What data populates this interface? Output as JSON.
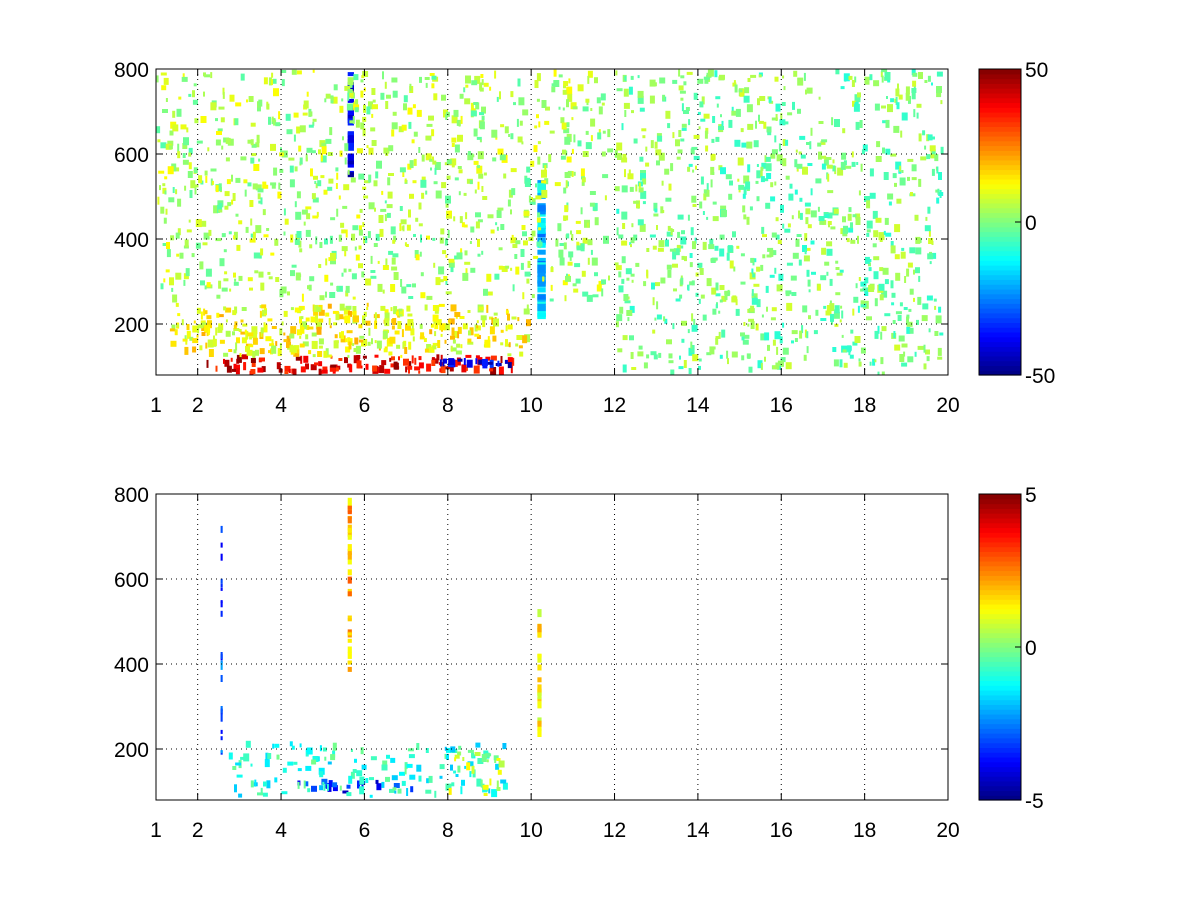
{
  "chart_data": [
    {
      "type": "heatmap",
      "title": "",
      "xlabel": "",
      "ylabel": "",
      "xlim": [
        1,
        20
      ],
      "ylim": [
        80,
        800
      ],
      "xticks": [
        "1",
        "2",
        "4",
        "6",
        "8",
        "10",
        "12",
        "14",
        "16",
        "18",
        "20"
      ],
      "xtick_values": [
        1,
        2,
        4,
        6,
        8,
        10,
        12,
        14,
        16,
        18,
        20
      ],
      "yticks": [
        "200",
        "400",
        "600",
        "800"
      ],
      "ytick_values": [
        200,
        400,
        600,
        800
      ],
      "grid": true,
      "colormap": "jet",
      "clim": [
        -50,
        50
      ],
      "colorbar_ticks": [
        "-50",
        "0",
        "50"
      ],
      "colorbar_values": [
        -50,
        0,
        50
      ],
      "features": [
        {
          "x": [
            2.2,
            9.6
          ],
          "y": [
            80,
            130
          ],
          "value": 40
        },
        {
          "x": [
            7.6,
            9.6
          ],
          "y": [
            95,
            120
          ],
          "value": -40
        },
        {
          "x": [
            1.3,
            10.0
          ],
          "y": [
            120,
            250
          ],
          "value": 12
        },
        {
          "x": [
            5.6,
            5.75
          ],
          "y": [
            540,
            800
          ],
          "value": -40
        },
        {
          "x": [
            10.15,
            10.35
          ],
          "y": [
            200,
            550
          ],
          "value": -18
        },
        {
          "x": [
            1.0,
            12.0
          ],
          "y": [
            250,
            800
          ],
          "value": 4
        },
        {
          "x": [
            12.0,
            19.9
          ],
          "y": [
            80,
            800
          ],
          "value": 0
        }
      ]
    },
    {
      "type": "heatmap",
      "title": "",
      "xlabel": "",
      "ylabel": "",
      "xlim": [
        1,
        20
      ],
      "ylim": [
        80,
        800
      ],
      "xticks": [
        "1",
        "2",
        "4",
        "6",
        "8",
        "10",
        "12",
        "14",
        "16",
        "18",
        "20"
      ],
      "xtick_values": [
        1,
        2,
        4,
        6,
        8,
        10,
        12,
        14,
        16,
        18,
        20
      ],
      "yticks": [
        "200",
        "400",
        "600",
        "800"
      ],
      "ytick_values": [
        200,
        400,
        600,
        800
      ],
      "grid": true,
      "colormap": "jet",
      "clim": [
        -5,
        5
      ],
      "colorbar_ticks": [
        "-5",
        "0",
        "5"
      ],
      "colorbar_values": [
        -5,
        0,
        5
      ],
      "features": [
        {
          "x": [
            4.3,
            7.8
          ],
          "y": [
            95,
            130
          ],
          "value": -3.5
        },
        {
          "x": [
            2.6,
            9.5
          ],
          "y": [
            85,
            220
          ],
          "value": -1
        },
        {
          "x": [
            8.0,
            9.5
          ],
          "y": [
            85,
            200
          ],
          "value": 0.5
        },
        {
          "x": [
            5.6,
            5.7
          ],
          "y": [
            380,
            800
          ],
          "value": 2
        },
        {
          "x": [
            10.15,
            10.25
          ],
          "y": [
            220,
            530
          ],
          "value": 1.5
        },
        {
          "x": [
            2.55,
            2.6
          ],
          "y": [
            150,
            780
          ],
          "value": -3
        }
      ]
    }
  ]
}
